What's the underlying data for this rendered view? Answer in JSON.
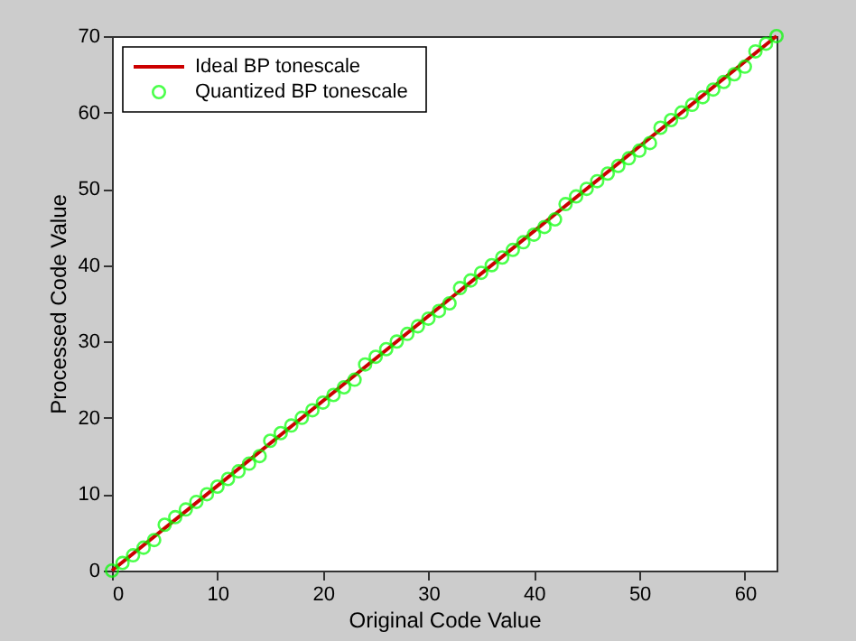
{
  "chart_data": {
    "type": "line",
    "xlabel": "Original Code Value",
    "ylabel": "Processed Code Value",
    "xlim": [
      0,
      63
    ],
    "ylim": [
      0,
      70
    ],
    "xticks": [
      0,
      10,
      20,
      30,
      40,
      50,
      60
    ],
    "yticks": [
      0,
      10,
      20,
      30,
      40,
      50,
      60,
      70
    ],
    "grid": false,
    "legend": "top left",
    "series": [
      {
        "name": "Ideal BP tonescale",
        "color": "#cc0000",
        "line_style": "solid",
        "marker": "none",
        "x": [
          0,
          63
        ],
        "values": [
          0,
          70
        ]
      },
      {
        "name": "Quantized BP tonescale",
        "type": "scatter",
        "color": "#00ff00",
        "marker": "circle",
        "x": [
          0,
          1,
          2,
          3,
          4,
          5,
          6,
          7,
          8,
          9,
          10,
          11,
          12,
          13,
          14,
          15,
          16,
          17,
          18,
          19,
          20,
          21,
          22,
          23,
          24,
          25,
          26,
          27,
          28,
          29,
          30,
          31,
          32,
          33,
          34,
          35,
          36,
          37,
          38,
          39,
          40,
          41,
          42,
          43,
          44,
          45,
          46,
          47,
          48,
          49,
          50,
          51,
          52,
          53,
          54,
          55,
          56,
          57,
          58,
          59,
          60,
          61,
          62,
          63
        ],
        "values": [
          0,
          1,
          2,
          3,
          4,
          6,
          7,
          8,
          9,
          10,
          11,
          12,
          13,
          14,
          15,
          17,
          18,
          19,
          20,
          21,
          22,
          23,
          24,
          25,
          27,
          28,
          29,
          30,
          31,
          32,
          33,
          34,
          35,
          37,
          38,
          39,
          40,
          41,
          42,
          43,
          44,
          45,
          46,
          48,
          49,
          50,
          51,
          52,
          53,
          54,
          55,
          56,
          58,
          59,
          60,
          61,
          62,
          63,
          64,
          65,
          66,
          68,
          69,
          70
        ]
      }
    ]
  }
}
